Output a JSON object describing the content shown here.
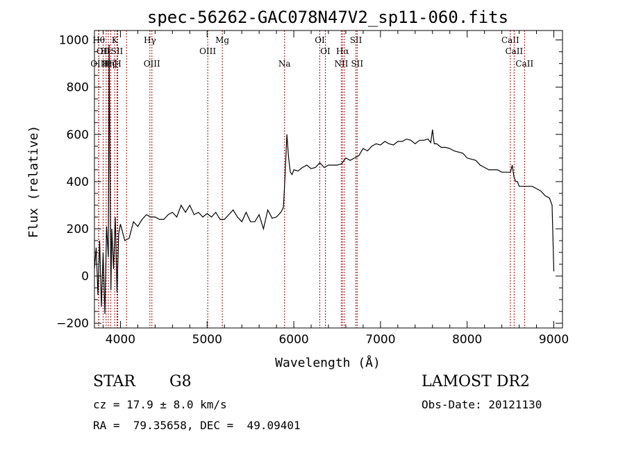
{
  "chart_data": {
    "type": "line",
    "title": "spec-56262-GAC078N47V2_sp11-060.fits",
    "xlabel": "Wavelength (Å)",
    "ylabel": "Flux (relative)",
    "xlim": [
      3700,
      9100
    ],
    "ylim": [
      -220,
      1040
    ],
    "xticks": [
      {
        "value": 4000,
        "label": "4000"
      },
      {
        "value": 5000,
        "label": "5000"
      },
      {
        "value": 6000,
        "label": "6000"
      },
      {
        "value": 7000,
        "label": "7000"
      },
      {
        "value": 8000,
        "label": "8000"
      },
      {
        "value": 9000,
        "label": "9000"
      }
    ],
    "yticks": [
      {
        "value": -200,
        "label": "−200"
      },
      {
        "value": 0,
        "label": "0"
      },
      {
        "value": 200,
        "label": "200"
      },
      {
        "value": 400,
        "label": "400"
      },
      {
        "value": 600,
        "label": "600"
      },
      {
        "value": 800,
        "label": "800"
      },
      {
        "value": 1000,
        "label": "1000"
      }
    ],
    "grid": false,
    "line_color": "#000000",
    "marker_color": "#aa0000",
    "series": [
      {
        "x": [
          3700,
          3720,
          3740,
          3760,
          3780,
          3800,
          3820,
          3840,
          3860,
          3870,
          3880,
          3890,
          3900,
          3920,
          3940,
          3960,
          3980,
          4000,
          4050,
          4100,
          4150,
          4200,
          4250,
          4300,
          4350,
          4400,
          4450,
          4500,
          4550,
          4600,
          4650,
          4700,
          4750,
          4800,
          4850,
          4900,
          4950,
          5000,
          5050,
          5100,
          5150,
          5200,
          5250,
          5300,
          5350,
          5400,
          5450,
          5500,
          5550,
          5600,
          5650,
          5700,
          5750,
          5800,
          5850,
          5880,
          5900,
          5920,
          5940,
          5960,
          5980,
          6000,
          6050,
          6100,
          6150,
          6200,
          6250,
          6300,
          6350,
          6400,
          6450,
          6500,
          6550,
          6600,
          6650,
          6700,
          6750,
          6800,
          6850,
          6900,
          6950,
          7000,
          7050,
          7100,
          7150,
          7200,
          7250,
          7300,
          7350,
          7400,
          7450,
          7500,
          7550,
          7580,
          7600,
          7620,
          7650,
          7700,
          7750,
          7800,
          7850,
          7900,
          7950,
          8000,
          8050,
          8100,
          8150,
          8200,
          8250,
          8300,
          8350,
          8400,
          8450,
          8500,
          8520,
          8540,
          8560,
          8580,
          8600,
          8650,
          8700,
          8750,
          8800,
          8850,
          8900,
          8950,
          8980,
          9000
        ],
        "y": [
          30,
          120,
          -80,
          150,
          -130,
          100,
          -160,
          210,
          80,
          980,
          420,
          -60,
          200,
          30,
          250,
          -70,
          180,
          220,
          150,
          160,
          230,
          210,
          240,
          260,
          250,
          250,
          240,
          240,
          260,
          270,
          250,
          300,
          270,
          300,
          260,
          270,
          250,
          265,
          250,
          270,
          240,
          240,
          260,
          280,
          250,
          230,
          270,
          230,
          230,
          260,
          200,
          280,
          245,
          250,
          270,
          290,
          430,
          600,
          500,
          440,
          430,
          450,
          445,
          460,
          470,
          455,
          460,
          480,
          460,
          470,
          470,
          470,
          475,
          500,
          490,
          500,
          510,
          540,
          530,
          550,
          560,
          555,
          570,
          560,
          555,
          570,
          570,
          580,
          575,
          560,
          575,
          575,
          580,
          565,
          620,
          560,
          560,
          545,
          545,
          540,
          530,
          525,
          520,
          500,
          495,
          490,
          470,
          460,
          450,
          450,
          450,
          440,
          440,
          440,
          470,
          420,
          400,
          400,
          380,
          380,
          380,
          380,
          370,
          360,
          340,
          330,
          300,
          20
        ]
      }
    ],
    "lines": [
      {
        "wavelength": 3750,
        "label": "Hθ",
        "row": 1
      },
      {
        "wavelength": 3800,
        "label": "OII",
        "row": 2
      },
      {
        "wavelength": 3750,
        "label": "OIII",
        "row": 3
      },
      {
        "wavelength": 3835,
        "label": "Hε",
        "row": 2
      },
      {
        "wavelength": 3860,
        "label": "Hη",
        "row": 3
      },
      {
        "wavelength": 3889,
        "label": "Hζ",
        "row": 3
      },
      {
        "wavelength": 3934,
        "label": "K",
        "row": 1
      },
      {
        "wavelength": 3960,
        "label": "SII",
        "row": 2
      },
      {
        "wavelength": 3969,
        "label": "H",
        "row": 3
      },
      {
        "wavelength": 4070,
        "label": "",
        "row": 0
      },
      {
        "wavelength": 4340,
        "label": "Hγ",
        "row": 1
      },
      {
        "wavelength": 4363,
        "label": "OIII",
        "row": 3
      },
      {
        "wavelength": 5007,
        "label": "OIII",
        "row": 2
      },
      {
        "wavelength": 5175,
        "label": "Mg",
        "row": 1
      },
      {
        "wavelength": 5893,
        "label": "Na",
        "row": 3
      },
      {
        "wavelength": 6300,
        "label": "OI",
        "row": 1
      },
      {
        "wavelength": 6364,
        "label": "OI",
        "row": 2
      },
      {
        "wavelength": 6548,
        "label": "NII",
        "row": 3
      },
      {
        "wavelength": 6563,
        "label": "Hα",
        "row": 2
      },
      {
        "wavelength": 6583,
        "label": "",
        "row": 0
      },
      {
        "wavelength": 6717,
        "label": "SII",
        "row": 1
      },
      {
        "wavelength": 6731,
        "label": "SII",
        "row": 3
      },
      {
        "wavelength": 8498,
        "label": "CaII",
        "row": 1
      },
      {
        "wavelength": 8542,
        "label": "CaII",
        "row": 2
      },
      {
        "wavelength": 8662,
        "label": "CaII",
        "row": 3
      }
    ]
  },
  "info": {
    "class_label": "STAR",
    "subclass_label": "G8",
    "survey": "LAMOST DR2",
    "cz": "cz = 17.9 ± 8.0 km/s",
    "obs_date": "Obs-Date: 20121130",
    "coords": "RA =  79.35658, DEC =  49.09401"
  }
}
